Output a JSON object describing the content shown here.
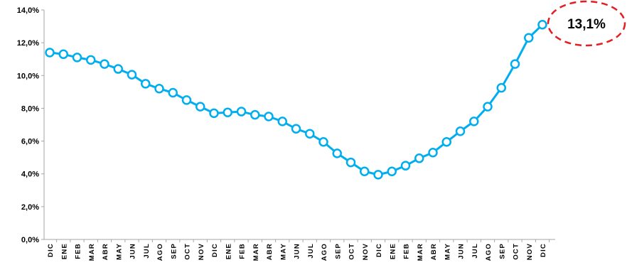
{
  "chart_data": {
    "type": "line",
    "title": "",
    "xlabel": "",
    "ylabel": "",
    "ylim": [
      0,
      14
    ],
    "yticks": [
      "0,0%",
      "2,0%",
      "4,0%",
      "6,0%",
      "8,0%",
      "10,0%",
      "12,0%",
      "14,0%"
    ],
    "categories": [
      "DIC",
      "ENE",
      "FEB",
      "MAR",
      "ABR",
      "MAY",
      "JUN",
      "JUL",
      "AGO",
      "SEP",
      "OCT",
      "NOV",
      "DIC",
      "ENE",
      "FEB",
      "MAR",
      "ABR",
      "MAY",
      "JUN",
      "JUL",
      "AGO",
      "SEP",
      "OCT",
      "NOV",
      "DIC",
      "ENE",
      "FEB",
      "MAR",
      "ABR",
      "MAY",
      "JUN",
      "JUL",
      "AGO",
      "SEP",
      "OCT",
      "NOV",
      "DIC"
    ],
    "series": [
      {
        "values": [
          11.4,
          11.3,
          11.1,
          10.95,
          10.7,
          10.4,
          10.05,
          9.5,
          9.2,
          8.95,
          8.5,
          8.1,
          7.7,
          7.75,
          7.8,
          7.6,
          7.5,
          7.2,
          6.75,
          6.45,
          5.95,
          5.25,
          4.7,
          4.15,
          3.95,
          4.15,
          4.5,
          4.95,
          5.3,
          5.95,
          6.6,
          7.2,
          8.1,
          9.25,
          10.7,
          12.3,
          13.1
        ]
      }
    ],
    "line_color": "#00aeef",
    "marker": "open-circle",
    "grid": false,
    "legend": "none"
  },
  "annotation": {
    "text": "13,1%",
    "border_color": "#e31e24",
    "border_style": "dashed-ellipse"
  }
}
